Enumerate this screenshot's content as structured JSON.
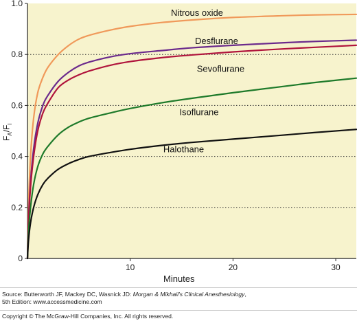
{
  "chart_data": {
    "type": "line",
    "xlabel": "Minutes",
    "ylabel_main": "F",
    "ylabel_sub1": "A",
    "ylabel_sep": "/F",
    "ylabel_sub2": "I",
    "xlim": [
      0,
      32
    ],
    "ylim": [
      0,
      1.0
    ],
    "xticks": [
      10,
      20,
      30
    ],
    "yticks": [
      0,
      0.2,
      0.4,
      0.6,
      0.8,
      1.0
    ],
    "ytick_labels": [
      "0",
      "0.2",
      "0.4",
      "0.6",
      "0.8",
      "1.0"
    ],
    "grid": "horizontal dotted",
    "background": "#f7f3cd",
    "series": [
      {
        "name": "Nitrous oxide",
        "color": "#f0995a",
        "label_at": [
          16.5,
          0.965
        ],
        "x": [
          0,
          0.1,
          0.3,
          0.6,
          1,
          1.5,
          2,
          3,
          4,
          5,
          6,
          8,
          10,
          13,
          16,
          20,
          25,
          28,
          32
        ],
        "y": [
          0,
          0.2,
          0.4,
          0.55,
          0.65,
          0.71,
          0.75,
          0.8,
          0.835,
          0.86,
          0.875,
          0.895,
          0.91,
          0.925,
          0.935,
          0.945,
          0.952,
          0.955,
          0.957
        ]
      },
      {
        "name": "Desflurane",
        "color": "#6b2a8c",
        "label_at": [
          18.4,
          0.855
        ],
        "x": [
          0,
          0.1,
          0.3,
          0.6,
          1,
          1.5,
          2,
          3,
          4,
          5,
          6,
          8,
          10,
          13,
          16,
          20,
          25,
          28,
          32
        ],
        "y": [
          0,
          0.15,
          0.3,
          0.43,
          0.53,
          0.6,
          0.64,
          0.695,
          0.73,
          0.755,
          0.77,
          0.79,
          0.803,
          0.815,
          0.826,
          0.836,
          0.846,
          0.851,
          0.856
        ]
      },
      {
        "name": "Sevoflurane",
        "color": "#b0143c",
        "label_at": [
          18.8,
          0.745
        ],
        "x": [
          0,
          0.1,
          0.3,
          0.6,
          1,
          1.5,
          2,
          3,
          4,
          5,
          6,
          8,
          10,
          13,
          16,
          20,
          25,
          28,
          32
        ],
        "y": [
          0,
          0.14,
          0.28,
          0.4,
          0.5,
          0.57,
          0.61,
          0.67,
          0.7,
          0.72,
          0.735,
          0.757,
          0.772,
          0.787,
          0.798,
          0.81,
          0.822,
          0.828,
          0.836
        ]
      },
      {
        "name": "Isoflurane",
        "color": "#1e7a2a",
        "label_at": [
          16.7,
          0.575
        ],
        "x": [
          0,
          0.1,
          0.3,
          0.6,
          1,
          1.5,
          2,
          3,
          4,
          5,
          6,
          8,
          10,
          13,
          16,
          20,
          25,
          28,
          32
        ],
        "y": [
          0,
          0.1,
          0.2,
          0.29,
          0.36,
          0.41,
          0.44,
          0.485,
          0.515,
          0.535,
          0.55,
          0.57,
          0.588,
          0.61,
          0.628,
          0.65,
          0.675,
          0.69,
          0.707
        ]
      },
      {
        "name": "Halothane",
        "color": "#111111",
        "label_at": [
          15.2,
          0.43
        ],
        "x": [
          0,
          0.1,
          0.3,
          0.6,
          1,
          1.5,
          2,
          3,
          4,
          5,
          6,
          8,
          10,
          13,
          16,
          20,
          25,
          28,
          32
        ],
        "y": [
          0,
          0.07,
          0.14,
          0.2,
          0.25,
          0.29,
          0.315,
          0.35,
          0.372,
          0.388,
          0.4,
          0.415,
          0.428,
          0.443,
          0.455,
          0.468,
          0.484,
          0.494,
          0.506
        ]
      }
    ]
  },
  "footer": {
    "source_prefix": "Source: Butterworth JF, Mackey DC, Wasnick JD: ",
    "source_title": "Morgan & Mikhail's Clinical Anesthesiology",
    "source_suffix": ",",
    "source_line2": "5th Edition: www.accessmedicine.com",
    "copyright": "Copyright © The McGraw-Hill Companies, Inc. All rights reserved."
  }
}
